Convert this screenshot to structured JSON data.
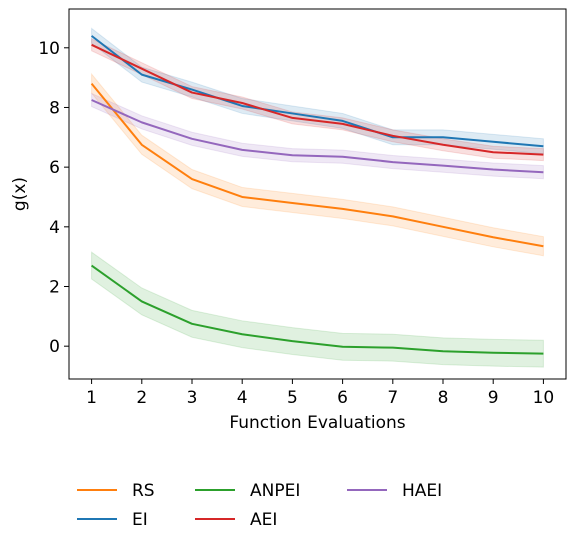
{
  "chart_data": {
    "type": "line",
    "title": "",
    "xlabel": "Function Evaluations",
    "ylabel": "g(x)",
    "x": [
      1,
      2,
      3,
      4,
      5,
      6,
      7,
      8,
      9,
      10
    ],
    "xlim": [
      0.55,
      10.45
    ],
    "ylim": [
      -1.1,
      11.3
    ],
    "xticks": [
      1,
      2,
      3,
      4,
      5,
      6,
      7,
      8,
      9,
      10
    ],
    "yticks": [
      0,
      2,
      4,
      6,
      8,
      10
    ],
    "grid": false,
    "legend_position": "bottom",
    "series": [
      {
        "name": "RS",
        "color": "#ff7f0e",
        "values": [
          8.8,
          6.75,
          5.6,
          5.0,
          4.8,
          4.6,
          4.35,
          4.0,
          3.65,
          3.35
        ],
        "band": 0.32
      },
      {
        "name": "EI",
        "color": "#1f77b4",
        "values": [
          10.4,
          9.1,
          8.6,
          8.05,
          7.8,
          7.55,
          7.0,
          7.0,
          6.85,
          6.7
        ],
        "band": 0.25
      },
      {
        "name": "ANPEI",
        "color": "#2ca02c",
        "values": [
          2.7,
          1.5,
          0.75,
          0.4,
          0.17,
          -0.02,
          -0.05,
          -0.17,
          -0.22,
          -0.25
        ],
        "band": 0.45
      },
      {
        "name": "AEI",
        "color": "#d62728",
        "values": [
          10.1,
          9.3,
          8.5,
          8.15,
          7.65,
          7.45,
          7.05,
          6.75,
          6.5,
          6.42
        ],
        "band": 0.2
      },
      {
        "name": "HAEI",
        "color": "#9467bd",
        "values": [
          8.25,
          7.5,
          6.95,
          6.58,
          6.4,
          6.35,
          6.17,
          6.05,
          5.92,
          5.83
        ],
        "band": 0.22
      }
    ]
  }
}
